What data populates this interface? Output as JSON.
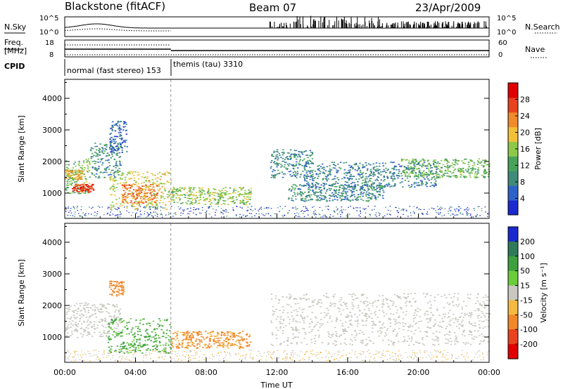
{
  "header": {
    "station": "Blackstone (fitACF)",
    "beam": "Beam 07",
    "date": "23/Apr/2009"
  },
  "top_panels": {
    "nsky_label": "N.Sky",
    "nsky_ticks": [
      "10^5",
      "10^0"
    ],
    "nsearch_label": "N.Search",
    "nsearch_ticks": [
      "10^5",
      "10^0"
    ],
    "freq_label": "Freq.",
    "freq_unit": "[MHz]",
    "freq_ticks": [
      "18",
      "8"
    ],
    "nave_label": "Nave",
    "nave_ticks": [
      "60",
      "0"
    ],
    "cpid_label": "CPID",
    "cpid_segments": [
      {
        "label": "normal (fast stereo) 153",
        "start_hour": 0,
        "end_hour": 6
      },
      {
        "label": "themis (tau) 3310",
        "start_hour": 6,
        "end_hour": 24
      }
    ]
  },
  "chart_data": [
    {
      "type": "heatmap",
      "name": "power-panel",
      "ylabel": "Slant Range [km]",
      "yticks": [
        "1000",
        "2000",
        "3000",
        "4000"
      ],
      "ylim": [
        200,
        4600
      ],
      "xlim": [
        0,
        24
      ],
      "colorbar_label": "Power [dB]",
      "colorbar_ticks": [
        "4",
        "8",
        "12",
        "16",
        "20",
        "24",
        "28"
      ],
      "colorbar_range": [
        0,
        32
      ],
      "colors": [
        "#1a2acf",
        "#2f62c8",
        "#3f8c7a",
        "#47a35a",
        "#8dc84a",
        "#f2c038",
        "#f08a2a",
        "#e8421e",
        "#e00000"
      ],
      "echo_regions": [
        {
          "t0": 0.0,
          "t1": 1.4,
          "r0": 1000,
          "r1": 2100,
          "power": 14
        },
        {
          "t0": 0.4,
          "t1": 1.6,
          "r0": 1050,
          "r1": 1300,
          "power": 27
        },
        {
          "t0": 0.0,
          "t1": 1.0,
          "r0": 1450,
          "r1": 1750,
          "power": 20
        },
        {
          "t0": 1.4,
          "t1": 3.2,
          "r0": 1500,
          "r1": 2600,
          "power": 9
        },
        {
          "t0": 2.5,
          "t1": 3.5,
          "r0": 2300,
          "r1": 3300,
          "power": 6
        },
        {
          "t0": 2.5,
          "t1": 6.0,
          "r0": 500,
          "r1": 1700,
          "power": 18
        },
        {
          "t0": 3.2,
          "t1": 5.2,
          "r0": 700,
          "r1": 1300,
          "power": 24
        },
        {
          "t0": 6.0,
          "t1": 10.5,
          "r0": 650,
          "r1": 1200,
          "power": 16
        },
        {
          "t0": 11.6,
          "t1": 14.0,
          "r0": 1500,
          "r1": 2400,
          "power": 9
        },
        {
          "t0": 12.6,
          "t1": 18.0,
          "r0": 750,
          "r1": 1300,
          "power": 9
        },
        {
          "t0": 13.5,
          "t1": 21.0,
          "r0": 1200,
          "r1": 2000,
          "power": 8
        },
        {
          "t0": 19.0,
          "t1": 24.0,
          "r0": 1500,
          "r1": 2100,
          "power": 14
        }
      ]
    },
    {
      "type": "heatmap",
      "name": "velocity-panel",
      "ylabel": "Slant Range [km]",
      "yticks": [
        "1000",
        "2000",
        "3000",
        "4000"
      ],
      "ylim": [
        200,
        4600
      ],
      "xlim": [
        0,
        24
      ],
      "colorbar_label": "Velocity [m s⁻¹]",
      "colorbar_ticks": [
        "200",
        "100",
        "50",
        "15",
        "-15",
        "-50",
        "-100",
        "-200"
      ],
      "colorbar_colors": [
        "#1a2acf",
        "#2f7a5a",
        "#3ea13e",
        "#6bcc3a",
        "#c8c8c0",
        "#f3b940",
        "#f0882a",
        "#e8421e",
        "#e00000"
      ],
      "echo_regions": [
        {
          "t0": 0.0,
          "t1": 3.2,
          "r0": 1000,
          "r1": 2100,
          "velocity": 0
        },
        {
          "t0": 2.4,
          "t1": 6.0,
          "r0": 500,
          "r1": 1600,
          "velocity": 40
        },
        {
          "t0": 6.0,
          "t1": 10.5,
          "r0": 650,
          "r1": 1200,
          "velocity": -40
        },
        {
          "t0": 11.6,
          "t1": 24.0,
          "r0": 750,
          "r1": 2400,
          "velocity": 0
        },
        {
          "t0": 2.5,
          "t1": 3.3,
          "r0": 2300,
          "r1": 2800,
          "velocity": -60
        }
      ]
    }
  ],
  "x_axis": {
    "label": "Time UT",
    "ticks": [
      "00:00",
      "04:00",
      "08:00",
      "12:00",
      "16:00",
      "20:00",
      "00:00"
    ]
  }
}
